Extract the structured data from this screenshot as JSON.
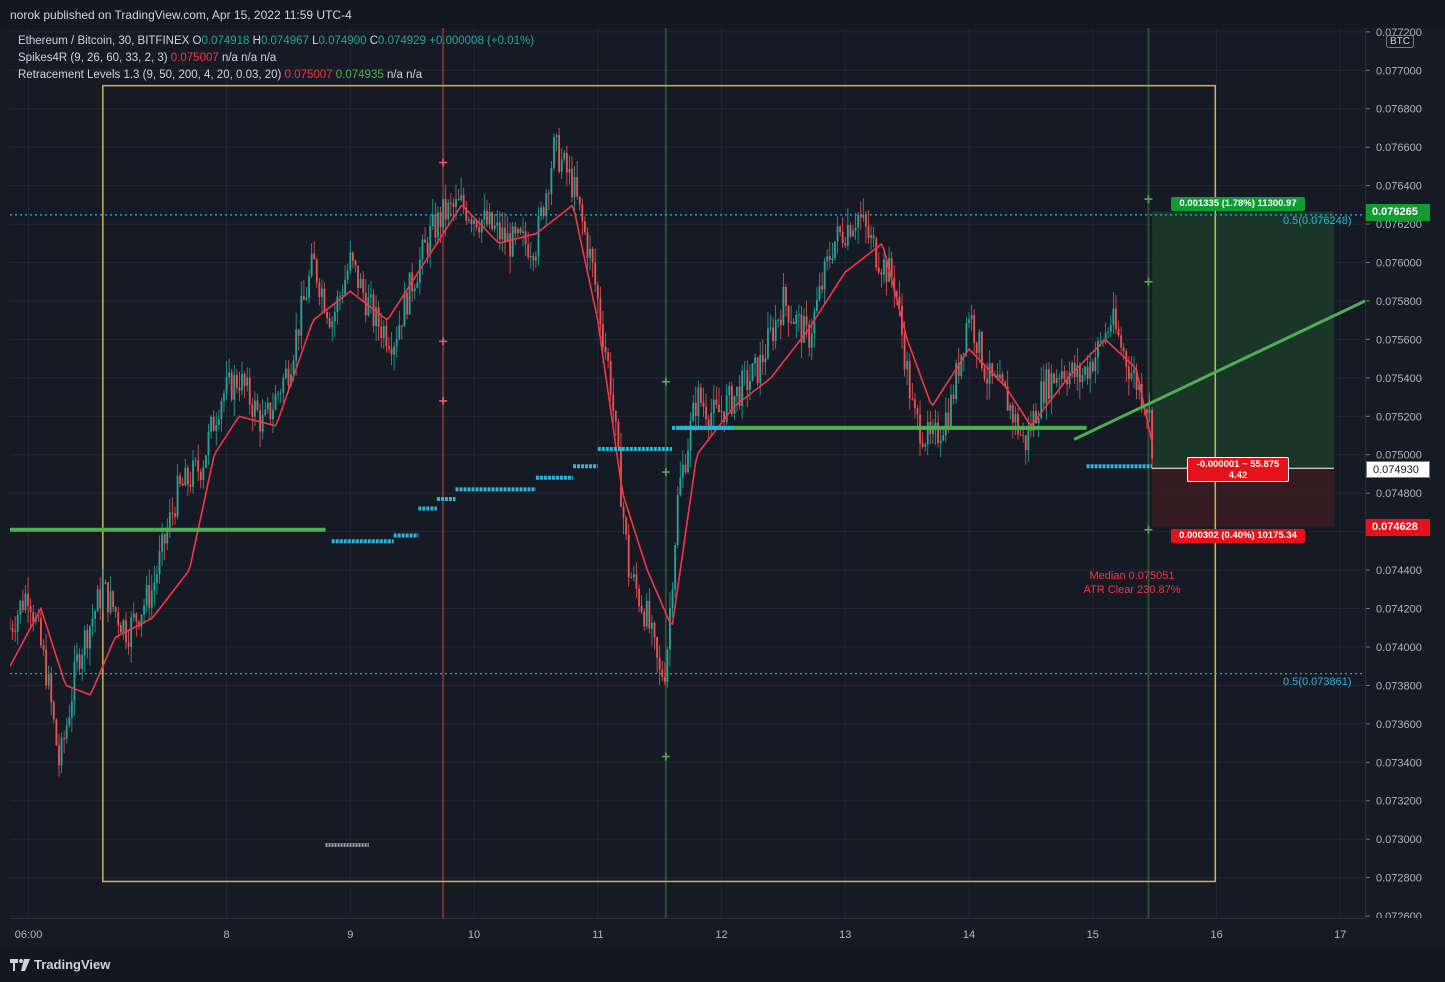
{
  "header": {
    "published": "norok published on TradingView.com, Apr 15, 2022 11:59 UTC-4"
  },
  "legend": {
    "symbol": "Ethereum / Bitcoin, 30, BITFINEX",
    "o_label": "O",
    "o_value": "0.074918",
    "h_label": "H",
    "h_value": "0.074967",
    "l_label": "L",
    "l_value": "0.074900",
    "c_label": "C",
    "c_value": "0.074929",
    "change": "+0.000008 (+0.01%)",
    "spikes_name": "Spikes4R (9, 26, 60, 33, 2, 3)",
    "spikes_value": "0.075007",
    "spikes_na": "n/a  n/a  n/a",
    "retr_name": "Retracement Levels 1.3 (9, 50, 200, 4, 20, 0.03, 20)",
    "retr_red": "0.075007",
    "retr_green": "0.074935",
    "retr_na": "n/a  n/a"
  },
  "annotations": {
    "median": "Median 0.075051",
    "atr": "ATR Clear 230.87%",
    "fib_upper": "0.5(0.076248)",
    "fib_lower": "0.5(0.073861)"
  },
  "position_tool": {
    "target_label": "0.001335 (1.78%) 11300.97",
    "entry_label_line1": "-0.000001 ~ 55.875",
    "entry_label_line2": "4.42",
    "stop_label": "0.000302 (0.40%) 10175.34"
  },
  "price_tags": {
    "target": "0.076265",
    "entry": "0.074930",
    "stop": "0.074628",
    "currency": "BTC"
  },
  "footer": {
    "brand": "TradingView"
  },
  "colors": {
    "background": "#161a25",
    "up": "#26a69a",
    "down": "#ef5350",
    "ma_line": "#f23645",
    "green_level": "#4caf50",
    "cyan_level": "#29b6d6",
    "box": "#c9b458",
    "target_zone": "#1b3a2a",
    "stop_zone": "#3a1c24"
  },
  "chart_data": {
    "type": "candlestick",
    "title": "Ethereum / Bitcoin, 30, BITFINEX",
    "x_ticks": [
      "06:00",
      "8",
      "9",
      "10",
      "11",
      "12",
      "13",
      "14",
      "15",
      "16",
      "17"
    ],
    "y_ticks": [
      "0.077200",
      "0.077000",
      "0.076800",
      "0.076600",
      "0.076400",
      "0.076200",
      "0.076000",
      "0.075800",
      "0.075600",
      "0.075400",
      "0.075200",
      "0.075000",
      "0.074800",
      "0.074600",
      "0.074400",
      "0.074200",
      "0.074000",
      "0.073800",
      "0.073600",
      "0.073400",
      "0.073200",
      "0.073000",
      "0.072800",
      "0.072600"
    ],
    "ylim": [
      0.07259,
      0.07722
    ],
    "x_range_days": [
      6.25,
      17.2
    ],
    "price_path": [
      [
        6.25,
        0.0741
      ],
      [
        6.4,
        0.0743
      ],
      [
        6.55,
        0.07385
      ],
      [
        6.65,
        0.07338
      ],
      [
        6.8,
        0.07395
      ],
      [
        7.0,
        0.0743
      ],
      [
        7.2,
        0.07408
      ],
      [
        7.4,
        0.0743
      ],
      [
        7.6,
        0.0748
      ],
      [
        7.8,
        0.07495
      ],
      [
        7.95,
        0.0753
      ],
      [
        8.1,
        0.0754
      ],
      [
        8.3,
        0.07515
      ],
      [
        8.5,
        0.07545
      ],
      [
        8.7,
        0.076
      ],
      [
        8.85,
        0.0757
      ],
      [
        9.0,
        0.076
      ],
      [
        9.2,
        0.0757
      ],
      [
        9.35,
        0.0756
      ],
      [
        9.5,
        0.0759
      ],
      [
        9.65,
        0.07615
      ],
      [
        9.75,
        0.07625
      ],
      [
        9.9,
        0.0763
      ],
      [
        10.1,
        0.0762
      ],
      [
        10.3,
        0.0761
      ],
      [
        10.5,
        0.0761
      ],
      [
        10.65,
        0.0766
      ],
      [
        10.8,
        0.0764
      ],
      [
        10.95,
        0.076
      ],
      [
        11.1,
        0.0754
      ],
      [
        11.25,
        0.0744
      ],
      [
        11.4,
        0.07415
      ],
      [
        11.5,
        0.07385
      ],
      [
        11.55,
        0.0739
      ],
      [
        11.65,
        0.0748
      ],
      [
        11.8,
        0.0753
      ],
      [
        11.95,
        0.0752
      ],
      [
        12.1,
        0.0753
      ],
      [
        12.3,
        0.07545
      ],
      [
        12.5,
        0.0758
      ],
      [
        12.7,
        0.0756
      ],
      [
        12.9,
        0.0761
      ],
      [
        13.1,
        0.07625
      ],
      [
        13.25,
        0.07605
      ],
      [
        13.4,
        0.0759
      ],
      [
        13.55,
        0.0752
      ],
      [
        13.7,
        0.07505
      ],
      [
        13.85,
        0.07525
      ],
      [
        14.0,
        0.07575
      ],
      [
        14.15,
        0.0754
      ],
      [
        14.3,
        0.0753
      ],
      [
        14.45,
        0.07505
      ],
      [
        14.6,
        0.07535
      ],
      [
        14.75,
        0.07545
      ],
      [
        14.9,
        0.0754
      ],
      [
        15.05,
        0.07555
      ],
      [
        15.15,
        0.0757
      ],
      [
        15.3,
        0.07545
      ],
      [
        15.45,
        0.07525
      ],
      [
        15.5,
        0.07493
      ]
    ],
    "ma_path": [
      [
        6.25,
        0.0739
      ],
      [
        6.5,
        0.0742
      ],
      [
        6.7,
        0.0738
      ],
      [
        6.9,
        0.07375
      ],
      [
        7.1,
        0.07405
      ],
      [
        7.4,
        0.07415
      ],
      [
        7.7,
        0.0744
      ],
      [
        7.9,
        0.075
      ],
      [
        8.1,
        0.0752
      ],
      [
        8.4,
        0.07515
      ],
      [
        8.7,
        0.0757
      ],
      [
        9.0,
        0.07585
      ],
      [
        9.3,
        0.0757
      ],
      [
        9.6,
        0.076
      ],
      [
        9.9,
        0.0763
      ],
      [
        10.2,
        0.0761
      ],
      [
        10.5,
        0.07615
      ],
      [
        10.8,
        0.0763
      ],
      [
        11.0,
        0.0757
      ],
      [
        11.2,
        0.0748
      ],
      [
        11.4,
        0.0744
      ],
      [
        11.6,
        0.0741
      ],
      [
        11.8,
        0.075
      ],
      [
        12.1,
        0.07525
      ],
      [
        12.4,
        0.0754
      ],
      [
        12.7,
        0.07565
      ],
      [
        13.0,
        0.07595
      ],
      [
        13.3,
        0.0761
      ],
      [
        13.5,
        0.0756
      ],
      [
        13.7,
        0.07525
      ],
      [
        14.0,
        0.07555
      ],
      [
        14.3,
        0.07535
      ],
      [
        14.5,
        0.07515
      ],
      [
        14.8,
        0.0754
      ],
      [
        15.1,
        0.0756
      ],
      [
        15.35,
        0.07545
      ],
      [
        15.5,
        0.075
      ]
    ],
    "horizontal_levels": [
      {
        "name": "fib-upper",
        "price": 0.076248,
        "style": "dotted"
      },
      {
        "name": "fib-lower",
        "price": 0.073861,
        "style": "dotted"
      }
    ],
    "green_support_levels": [
      {
        "x0": 6.25,
        "x1": 8.8,
        "price": 0.07461
      },
      {
        "x0": 11.65,
        "x1": 14.95,
        "price": 0.07514
      }
    ],
    "cyan_steps": [
      {
        "x0": 8.85,
        "x1": 9.35,
        "price": 0.07455
      },
      {
        "x0": 9.35,
        "x1": 9.55,
        "price": 0.07458
      },
      {
        "x0": 9.55,
        "x1": 9.7,
        "price": 0.07472
      },
      {
        "x0": 9.7,
        "x1": 9.85,
        "price": 0.07477
      },
      {
        "x0": 9.85,
        "x1": 10.5,
        "price": 0.07482
      },
      {
        "x0": 10.5,
        "x1": 10.8,
        "price": 0.07488
      },
      {
        "x0": 10.8,
        "x1": 11.0,
        "price": 0.07494
      },
      {
        "x0": 11.0,
        "x1": 11.6,
        "price": 0.07503
      },
      {
        "x0": 11.6,
        "x1": 12.1,
        "price": 0.07514
      },
      {
        "x0": 14.95,
        "x1": 15.48,
        "price": 0.07494
      }
    ],
    "trendline": {
      "x0": 14.85,
      "p0": 0.07508,
      "x1": 17.2,
      "p1": 0.0758
    },
    "position": {
      "x0": 15.48,
      "x1": 16.95,
      "entry": 0.07493,
      "target": 0.076265,
      "stop": 0.074628
    }
  }
}
